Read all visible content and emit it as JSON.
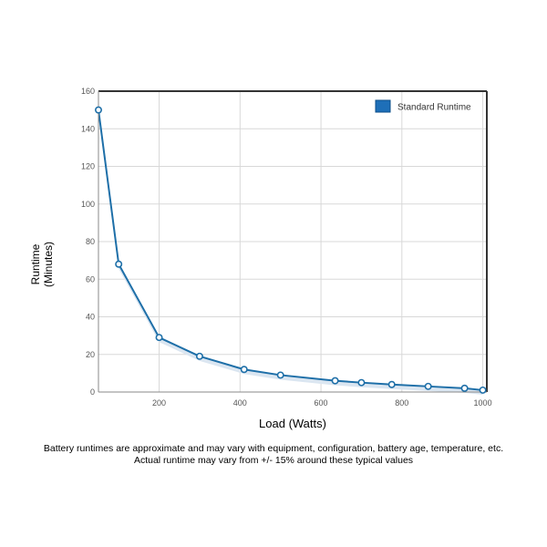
{
  "chart_data": {
    "type": "line",
    "x": [
      50,
      100,
      200,
      300,
      410,
      500,
      635,
      700,
      775,
      865,
      955,
      1000
    ],
    "series": [
      {
        "name": "Standard Runtime",
        "values": [
          150,
          68,
          29,
          19,
          12,
          9,
          6,
          5,
          4,
          3,
          2,
          1
        ]
      }
    ],
    "xlabel": "Load (Watts)",
    "ylabel": "Runtime\n(Minutes)",
    "xlim": [
      50,
      1010
    ],
    "ylim": [
      0,
      160
    ],
    "x_ticks": [
      200,
      400,
      600,
      800,
      1000
    ],
    "y_ticks": [
      0,
      20,
      40,
      60,
      80,
      100,
      120,
      140,
      160
    ],
    "grid": true,
    "legend_position": "top-right",
    "colors": {
      "line": "#1e6fa8",
      "area": "#dbe6f1",
      "marker_fill": "#ffffff",
      "legend_swatch": "#1e6fb8",
      "grid": "#d8d8d8",
      "frame": "#333333",
      "tick_text": "#555555"
    }
  },
  "caption": {
    "line1": "Battery runtimes are approximate and may vary with equipment, configuration, battery age, temperature, etc.",
    "line2": "Actual runtime may vary from +/- 15% around these typical values"
  }
}
